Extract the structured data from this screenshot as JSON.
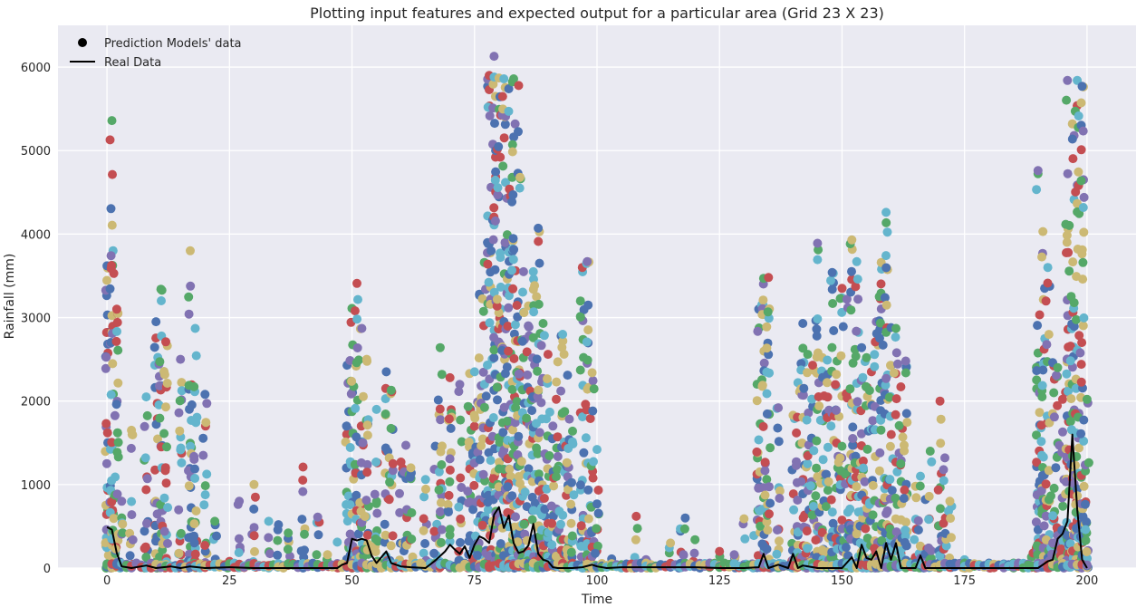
{
  "chart_data": {
    "type": "scatter",
    "title": "Plotting input features and expected output for a particular area (Grid 23 X 23)",
    "xlabel": "Time",
    "ylabel": "Rainfall (mm)",
    "xlim": [
      -10,
      210
    ],
    "ylim": [
      0,
      6500
    ],
    "xticks": [
      0,
      25,
      50,
      75,
      100,
      125,
      150,
      175,
      200
    ],
    "yticks": [
      0,
      1000,
      2000,
      3000,
      4000,
      5000,
      6000
    ],
    "grid": true,
    "legend": {
      "placement": "top-left",
      "entries": [
        {
          "label": "Prediction Models' data",
          "marker": "dot",
          "color": "#000000"
        },
        {
          "label": "Real Data",
          "marker": "line",
          "color": "#000000"
        }
      ]
    },
    "colors": {
      "background": "#eaeaf2",
      "grid": "#ffffff",
      "series": [
        "#4c72b0",
        "#55a868",
        "#c44e52",
        "#8172b2",
        "#ccb974",
        "#64b5cd"
      ],
      "real_line": "#000000"
    },
    "scatter_envelope": {
      "x": [
        0,
        1,
        2,
        3,
        5,
        8,
        10,
        11,
        12,
        15,
        17,
        18,
        20,
        22,
        25,
        27,
        30,
        33,
        35,
        37,
        40,
        43,
        45,
        47,
        49,
        50,
        51,
        52,
        53,
        55,
        57,
        58,
        60,
        61,
        62,
        65,
        67,
        68,
        70,
        72,
        74,
        75,
        76,
        77,
        78,
        79,
        80,
        81,
        82,
        83,
        84,
        85,
        86,
        87,
        88,
        89,
        90,
        91,
        92,
        93,
        94,
        95,
        97,
        98,
        99,
        100,
        103,
        105,
        108,
        110,
        115,
        117,
        118,
        120,
        125,
        128,
        130,
        132,
        133,
        134,
        135,
        137,
        140,
        141,
        142,
        143,
        144,
        145,
        146,
        147,
        148,
        149,
        150,
        151,
        152,
        153,
        154,
        155,
        156,
        157,
        158,
        159,
        160,
        161,
        162,
        163,
        165,
        166,
        167,
        168,
        170,
        171,
        172,
        175,
        180,
        185,
        189,
        190,
        191,
        192,
        193,
        194,
        195,
        196,
        197,
        198,
        199,
        200
      ],
      "max": [
        3620,
        5360,
        3100,
        800,
        1650,
        2050,
        2950,
        3340,
        2710,
        2500,
        3800,
        2870,
        2080,
        560,
        80,
        800,
        1000,
        560,
        520,
        420,
        1210,
        610,
        160,
        310,
        2430,
        3110,
        3410,
        2870,
        2500,
        1900,
        2350,
        2130,
        1270,
        1470,
        1200,
        1060,
        1460,
        2640,
        2280,
        2200,
        2330,
        2350,
        3280,
        3660,
        5900,
        6130,
        5870,
        5860,
        5740,
        5860,
        5780,
        3550,
        3140,
        3550,
        4070,
        2930,
        2560,
        1700,
        2470,
        2800,
        2310,
        1640,
        3600,
        3670,
        2340,
        1420,
        110,
        40,
        620,
        100,
        300,
        470,
        600,
        340,
        200,
        160,
        590,
        390,
        3100,
        3470,
        3480,
        1920,
        1830,
        2220,
        2930,
        2560,
        2430,
        3890,
        2520,
        2490,
        3540,
        2480,
        3350,
        3220,
        3930,
        3670,
        2640,
        2520,
        2350,
        2950,
        3660,
        4260,
        2880,
        2870,
        2170,
        2480,
        980,
        1100,
        820,
        1400,
        2000,
        1320,
        800,
        100,
        60,
        60,
        180,
        4760,
        4030,
        3600,
        2460,
        2400,
        2020,
        5840,
        5320,
        5840,
        5770,
        2020
      ],
      "low_chunks": [
        [
          0,
          1
        ],
        [
          2,
          12
        ],
        [
          14,
          21
        ],
        [
          21,
          26
        ],
        [
          26,
          30
        ],
        [
          30,
          34
        ],
        [
          34,
          38
        ],
        [
          38,
          45
        ],
        [
          45,
          49
        ],
        [
          49,
          52
        ],
        [
          52,
          55
        ],
        [
          55,
          60
        ],
        [
          60,
          63
        ],
        [
          63,
          66
        ],
        [
          66,
          70
        ],
        [
          70,
          73
        ],
        [
          73,
          78
        ],
        [
          78,
          82
        ],
        [
          82,
          86
        ],
        [
          86,
          92
        ],
        [
          92,
          96
        ],
        [
          96,
          100
        ],
        [
          100,
          104
        ],
        [
          104,
          109
        ],
        [
          109,
          113
        ],
        [
          113,
          118
        ],
        [
          118,
          122
        ],
        [
          122,
          126
        ],
        [
          126,
          130
        ],
        [
          130,
          134
        ]
      ]
    },
    "real_data": {
      "x": [
        0,
        1,
        2,
        3,
        5,
        8,
        10,
        13,
        15,
        17,
        20,
        25,
        30,
        35,
        40,
        45,
        47,
        48,
        49,
        50,
        51,
        52,
        53,
        54,
        55,
        56,
        57,
        58,
        60,
        62,
        65,
        67,
        69,
        70,
        71,
        72,
        73,
        74,
        75,
        76,
        77,
        78,
        79,
        80,
        81,
        82,
        83,
        84,
        85,
        86,
        87,
        88,
        89,
        90,
        91,
        92,
        95,
        97,
        99,
        100,
        102,
        105,
        110,
        115,
        120,
        125,
        130,
        133,
        134,
        135,
        137,
        139,
        140,
        141,
        142,
        145,
        148,
        150,
        152,
        153,
        154,
        155,
        156,
        157,
        158,
        159,
        160,
        161,
        162,
        163,
        165,
        166,
        167,
        170,
        175,
        180,
        185,
        190,
        192,
        193,
        194,
        195,
        196,
        197,
        198,
        199,
        200
      ],
      "y": [
        490,
        460,
        180,
        20,
        0,
        30,
        0,
        20,
        0,
        20,
        0,
        10,
        0,
        0,
        0,
        0,
        0,
        40,
        60,
        350,
        330,
        350,
        330,
        150,
        60,
        130,
        200,
        60,
        20,
        10,
        0,
        90,
        200,
        280,
        220,
        170,
        260,
        120,
        280,
        380,
        350,
        300,
        640,
        730,
        480,
        630,
        300,
        180,
        200,
        270,
        530,
        170,
        100,
        80,
        10,
        0,
        0,
        10,
        40,
        20,
        0,
        10,
        10,
        10,
        10,
        0,
        0,
        10,
        170,
        0,
        40,
        0,
        170,
        0,
        30,
        0,
        0,
        0,
        130,
        0,
        280,
        120,
        100,
        200,
        0,
        300,
        100,
        300,
        0,
        0,
        0,
        150,
        0,
        0,
        0,
        0,
        0,
        0,
        80,
        100,
        350,
        410,
        560,
        1600,
        700,
        100,
        0
      ]
    }
  }
}
